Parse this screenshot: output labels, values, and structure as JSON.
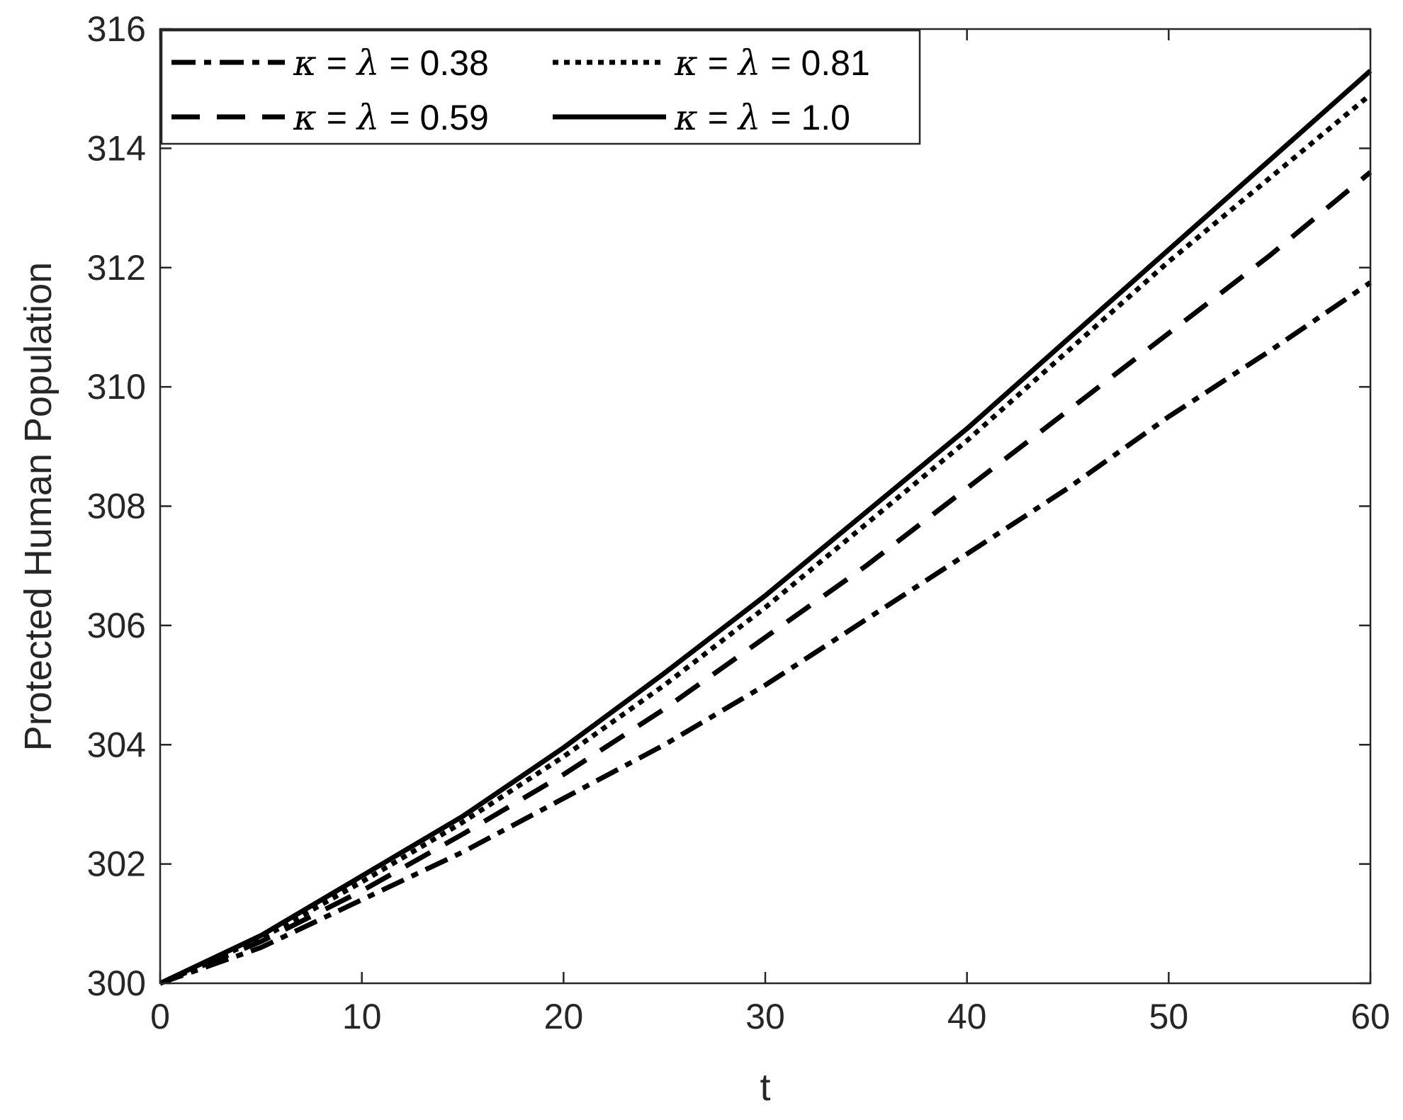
{
  "chart_data": {
    "type": "line",
    "title": "",
    "xlabel": "t",
    "ylabel": "Protected Human Population",
    "xlim": [
      0,
      60
    ],
    "ylim": [
      300,
      316
    ],
    "xticks": [
      "0",
      "10",
      "20",
      "30",
      "40",
      "50",
      "60"
    ],
    "yticks": [
      "300",
      "302",
      "304",
      "306",
      "308",
      "310",
      "312",
      "314",
      "316"
    ],
    "grid": false,
    "legend_position": "top-left",
    "legend_columns": 2,
    "x": [
      0,
      5,
      10,
      15,
      20,
      25,
      30,
      35,
      40,
      45,
      50,
      55,
      60
    ],
    "series": [
      {
        "name": "κ = λ = 0.38",
        "label_parts": [
          "κ",
          " = ",
          "λ",
          " = 0.38"
        ],
        "line_style": "dashdot",
        "values": [
          300.0,
          300.6,
          301.4,
          302.2,
          303.1,
          304.0,
          305.0,
          306.1,
          307.2,
          308.3,
          309.5,
          310.6,
          311.75
        ]
      },
      {
        "name": "κ = λ  = 0.59",
        "label_parts": [
          "κ",
          " = ",
          "λ",
          "  = 0.59"
        ],
        "line_style": "dashed",
        "values": [
          300.0,
          300.7,
          301.55,
          302.5,
          303.5,
          304.6,
          305.8,
          307.0,
          308.3,
          309.6,
          310.9,
          312.2,
          313.6
        ]
      },
      {
        "name": "κ = λ  = 0.81",
        "label_parts": [
          "κ",
          " = ",
          "λ",
          "  = 0.81"
        ],
        "line_style": "dotted",
        "values": [
          300.0,
          300.75,
          301.7,
          302.7,
          303.8,
          305.0,
          306.3,
          307.7,
          309.1,
          310.6,
          312.1,
          313.5,
          314.9
        ]
      },
      {
        "name": "κ = λ  = 1.0",
        "label_parts": [
          "κ",
          " = ",
          "λ",
          "  = 1.0"
        ],
        "line_style": "solid",
        "values": [
          300.0,
          300.8,
          301.8,
          302.8,
          303.95,
          305.2,
          306.5,
          307.9,
          309.3,
          310.8,
          312.3,
          313.8,
          315.3
        ]
      }
    ]
  },
  "colors": {
    "lines": "#000000",
    "axes": "#262626",
    "background": "#ffffff"
  }
}
